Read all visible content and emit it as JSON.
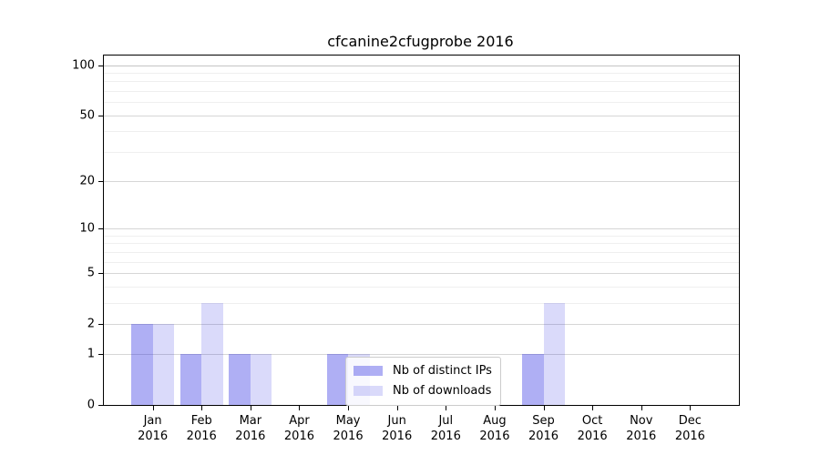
{
  "chart_data": {
    "type": "bar",
    "title": "cfcanine2cfugprobe 2016",
    "year_label": "2016",
    "categories": [
      "Jan 2016",
      "Feb 2016",
      "Mar 2016",
      "Apr 2016",
      "May 2016",
      "Jun 2016",
      "Jul 2016",
      "Aug 2016",
      "Sep 2016",
      "Oct 2016",
      "Nov 2016",
      "Dec 2016"
    ],
    "months": [
      "Jan",
      "Feb",
      "Mar",
      "Apr",
      "May",
      "Jun",
      "Jul",
      "Aug",
      "Sep",
      "Oct",
      "Nov",
      "Dec"
    ],
    "series": [
      {
        "name": "Nb of distinct IPs",
        "color": "rgba(25,25,224,0.35)",
        "values": [
          2,
          1,
          1,
          0,
          1,
          0,
          0,
          0,
          1,
          0,
          0,
          0
        ]
      },
      {
        "name": "Nb of downloads",
        "color": "rgba(25,25,224,0.16)",
        "values": [
          2,
          3,
          1,
          0,
          1,
          0,
          0,
          0,
          3,
          0,
          0,
          0
        ]
      }
    ],
    "y_axis": {
      "scale": "log1p",
      "major_ticks": [
        0,
        1,
        2,
        5,
        10,
        20,
        50,
        100
      ],
      "minor_ticks": [
        3,
        4,
        6,
        7,
        8,
        9,
        30,
        40,
        60,
        70,
        80,
        90
      ],
      "max": 114
    },
    "x_axis": {
      "tick_count": 12
    },
    "legend": {
      "position": "lower-center"
    },
    "grid": true
  },
  "colors": {
    "background": "#ffffff",
    "axis": "#000000",
    "grid_major": "#d6d6d6",
    "grid_minor": "#efefef",
    "grid_hundred": "#c4c4c4",
    "legend_border": "#cccccc",
    "text": "#000000"
  }
}
